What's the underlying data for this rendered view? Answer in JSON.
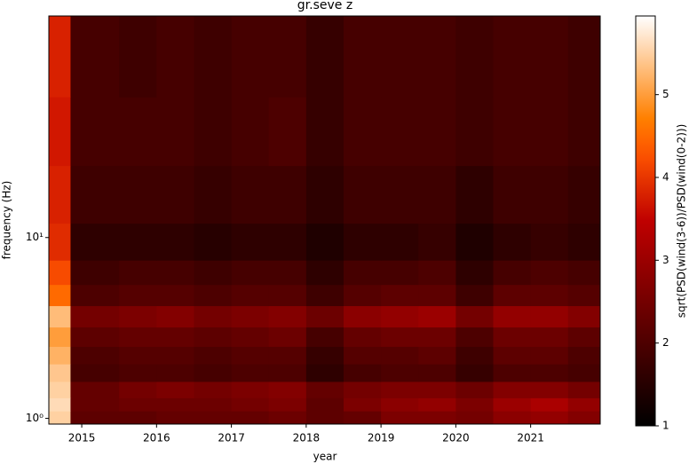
{
  "chart_data": {
    "type": "heatmap",
    "title": "gr.seve z",
    "x_label": "year",
    "y_label": "frequency (Hz)",
    "colorbar_label": "sqrt(PSD(wind(3-6))/PSD(wind(0-2)))",
    "colormap": "gist_heat",
    "y_log": true,
    "xlim": [
      2014.56,
      2021.93
    ],
    "xticks": [
      2015,
      2016,
      2017,
      2018,
      2019,
      2020,
      2021
    ],
    "ylim": [
      0.93,
      168
    ],
    "yticks": [
      {
        "value": 1,
        "label": "10⁰"
      },
      {
        "value": 10,
        "label": "10¹"
      }
    ],
    "x_edges": [
      2014.56,
      2014.85,
      2015.5,
      2016,
      2016.5,
      2017,
      2017.5,
      2018,
      2018.5,
      2019,
      2019.5,
      2020,
      2020.5,
      2021,
      2021.5,
      2021.93
    ],
    "y_edges": [
      0.93,
      1.1,
      1.3,
      1.6,
      2.0,
      2.5,
      3.2,
      4.2,
      5.5,
      7.5,
      12,
      25,
      60,
      168
    ],
    "values": [
      [
        5.5,
        2.2,
        2.2,
        2.3,
        2.3,
        2.3,
        2.4,
        2.2,
        2.3,
        2.6,
        2.6,
        2.5,
        2.8,
        2.9,
        2.7
      ],
      [
        5.6,
        2.3,
        2.4,
        2.4,
        2.4,
        2.5,
        2.6,
        2.2,
        2.6,
        2.8,
        2.9,
        2.6,
        3.0,
        3.2,
        2.9
      ],
      [
        5.5,
        2.3,
        2.5,
        2.6,
        2.5,
        2.6,
        2.7,
        2.3,
        2.5,
        2.6,
        2.6,
        2.4,
        2.7,
        2.7,
        2.5
      ],
      [
        5.4,
        1.9,
        2.0,
        2.0,
        1.9,
        2.0,
        2.0,
        1.6,
        1.9,
        2.0,
        2.0,
        1.7,
        2.0,
        2.0,
        1.9
      ],
      [
        5.2,
        2.0,
        2.1,
        2.1,
        2.0,
        2.1,
        2.1,
        1.7,
        2.1,
        2.1,
        2.2,
        1.8,
        2.2,
        2.2,
        2.0
      ],
      [
        5.0,
        2.2,
        2.3,
        2.3,
        2.2,
        2.3,
        2.4,
        1.9,
        2.3,
        2.4,
        2.4,
        2.0,
        2.4,
        2.4,
        2.2
      ],
      [
        5.3,
        2.5,
        2.6,
        2.7,
        2.5,
        2.6,
        2.7,
        2.4,
        2.8,
        2.9,
        3.0,
        2.5,
        2.9,
        2.9,
        2.7
      ],
      [
        4.5,
        2.0,
        2.1,
        2.1,
        2.0,
        2.1,
        2.1,
        1.8,
        2.1,
        2.2,
        2.2,
        1.8,
        2.2,
        2.2,
        2.1
      ],
      [
        4.2,
        1.8,
        1.9,
        1.9,
        1.8,
        1.9,
        1.9,
        1.6,
        1.9,
        1.9,
        2.0,
        1.6,
        1.9,
        2.0,
        1.9
      ],
      [
        3.9,
        1.6,
        1.6,
        1.6,
        1.5,
        1.6,
        1.6,
        1.4,
        1.6,
        1.6,
        1.7,
        1.4,
        1.6,
        1.7,
        1.6
      ],
      [
        3.8,
        1.8,
        1.8,
        1.8,
        1.7,
        1.8,
        1.8,
        1.6,
        1.8,
        1.8,
        1.8,
        1.6,
        1.8,
        1.8,
        1.7
      ],
      [
        3.7,
        1.9,
        1.9,
        1.9,
        1.8,
        1.9,
        2.0,
        1.7,
        1.9,
        1.9,
        1.9,
        1.8,
        1.9,
        1.9,
        1.8
      ],
      [
        3.8,
        1.9,
        1.8,
        1.9,
        1.8,
        1.9,
        1.9,
        1.7,
        1.9,
        1.9,
        1.9,
        1.8,
        1.9,
        1.9,
        1.8
      ]
    ],
    "colorbar": {
      "lim": [
        1,
        5.95
      ],
      "ticks": [
        1,
        2,
        3,
        4,
        5
      ]
    }
  }
}
